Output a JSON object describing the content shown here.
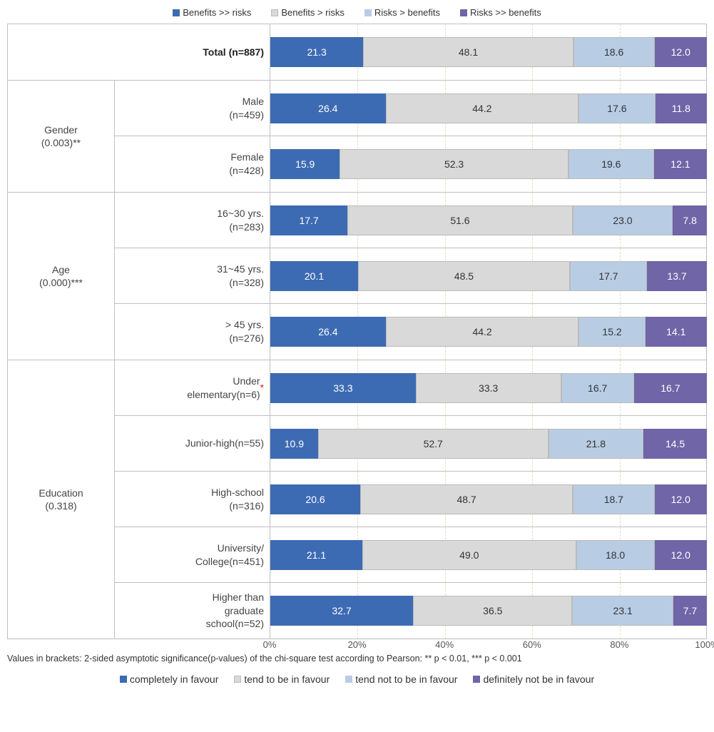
{
  "colors": {
    "c1": "#3d6bb3",
    "c2": "#d9d9d9",
    "c3": "#b8cce4",
    "c4": "#7065a7"
  },
  "legend_top": [
    "Benefits >> risks",
    "Benefits > risks",
    "Risks > benefits",
    "Risks >> benefits"
  ],
  "legend_bottom": [
    "completely in favour",
    "tend to be in favour",
    "tend not to be in favour",
    "definitely not be in favour"
  ],
  "axis": {
    "ticks": [
      "0%",
      "20%",
      "40%",
      "60%",
      "80%",
      "100%"
    ]
  },
  "footnote": "Values in brackets: 2-sided asymptotic significance(p-values) of the chi-square test according to Pearson: ** p < 0.01, *** p < 0.001",
  "groups": [
    {
      "label": "",
      "rows": [
        {
          "label": "Total (n=887)",
          "bold": true,
          "vals": [
            21.3,
            48.1,
            18.6,
            12.0
          ]
        }
      ]
    },
    {
      "label": "Gender\n(0.003)**",
      "rows": [
        {
          "label": "Male\n(n=459)",
          "vals": [
            26.4,
            44.2,
            17.6,
            11.8
          ]
        },
        {
          "label": "Female\n(n=428)",
          "vals": [
            15.9,
            52.3,
            19.6,
            12.1
          ]
        }
      ]
    },
    {
      "label": "Age\n(0.000)***",
      "rows": [
        {
          "label": "16~30 yrs.\n(n=283)",
          "vals": [
            17.7,
            51.6,
            23.0,
            7.8
          ]
        },
        {
          "label": "31~45 yrs.\n(n=328)",
          "vals": [
            20.1,
            48.5,
            17.7,
            13.7
          ]
        },
        {
          "label": "> 45 yrs.\n(n=276)",
          "vals": [
            26.4,
            44.2,
            15.2,
            14.1
          ]
        }
      ]
    },
    {
      "label": "Education\n(0.318)",
      "rows": [
        {
          "label": "Under\nelementary(n=6)",
          "red_asterisk": true,
          "vals": [
            33.3,
            33.3,
            16.7,
            16.7
          ]
        },
        {
          "label": "Junior-high(n=55)",
          "vals": [
            10.9,
            52.7,
            21.8,
            14.5
          ]
        },
        {
          "label": "High-school\n(n=316)",
          "vals": [
            20.6,
            48.7,
            18.7,
            12.0
          ]
        },
        {
          "label": "University/\nCollege(n=451)",
          "vals": [
            21.1,
            49.0,
            18.0,
            12.0
          ]
        },
        {
          "label": "Higher than\ngraduate\nschool(n=52)",
          "vals": [
            32.7,
            36.5,
            23.1,
            7.7
          ]
        }
      ]
    }
  ]
}
